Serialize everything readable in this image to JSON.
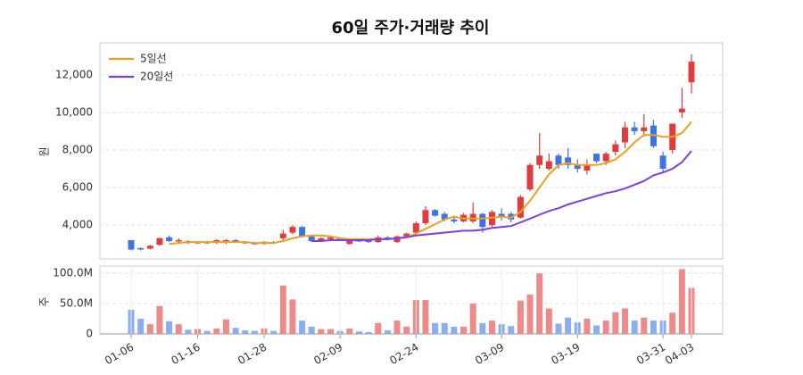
{
  "chart_data": [
    {
      "type": "candlestick",
      "title": "60일 주가·거래량 추이",
      "y_label": "원",
      "open": [
        3200,
        2780,
        2750,
        2950,
        3350,
        3150,
        3150,
        3050,
        3100,
        3050,
        3050,
        3200,
        3100,
        3050,
        3000,
        3100,
        3300,
        3600,
        3900,
        3400,
        3150,
        3250,
        3300,
        3000,
        3200,
        3200,
        3100,
        3350,
        3100,
        3400,
        3600,
        4100,
        4800,
        4600,
        4300,
        4200,
        4200,
        4600,
        4000,
        4600,
        4600,
        4400,
        5900,
        7200,
        7000,
        7700,
        7600,
        7200,
        6900,
        7800,
        7400,
        7900,
        8400,
        9200,
        9000,
        9300,
        7700,
        8000,
        10000,
        11600
      ],
      "high": [
        3200,
        2800,
        2950,
        3350,
        3450,
        3300,
        3200,
        3150,
        3150,
        3250,
        3250,
        3250,
        3150,
        3100,
        3150,
        3150,
        3750,
        4000,
        3950,
        3450,
        3350,
        3400,
        3350,
        3250,
        3250,
        3250,
        3450,
        3400,
        3450,
        3600,
        4200,
        5000,
        4850,
        4700,
        4500,
        4650,
        5200,
        4650,
        4800,
        4900,
        4700,
        5600,
        7300,
        8900,
        7800,
        7800,
        8100,
        7500,
        7500,
        7800,
        7900,
        8500,
        9500,
        9500,
        9900,
        9600,
        7900,
        9400,
        11300,
        13100
      ],
      "low": [
        2650,
        2650,
        2700,
        2900,
        3100,
        3050,
        3000,
        3000,
        3000,
        3000,
        3000,
        3050,
        3000,
        2950,
        2950,
        3000,
        3200,
        3500,
        3350,
        3100,
        3100,
        3200,
        3150,
        2950,
        3100,
        3050,
        3050,
        3200,
        3050,
        3350,
        3500,
        4000,
        4450,
        4200,
        4100,
        4150,
        4100,
        3600,
        3900,
        4250,
        4150,
        4350,
        5800,
        7000,
        6900,
        7000,
        7000,
        6800,
        6700,
        7300,
        7200,
        7700,
        8100,
        8800,
        8700,
        8100,
        6800,
        7800,
        9700,
        11000
      ],
      "close": [
        2700,
        2700,
        2900,
        3300,
        3150,
        3200,
        3050,
        3100,
        3050,
        3200,
        3200,
        3100,
        3050,
        3000,
        3100,
        3050,
        3550,
        3900,
        3400,
        3150,
        3300,
        3350,
        3200,
        3200,
        3150,
        3100,
        3350,
        3250,
        3400,
        3550,
        4100,
        4800,
        4500,
        4300,
        4200,
        4550,
        4600,
        3900,
        4700,
        4400,
        4300,
        5500,
        7200,
        7700,
        7400,
        7200,
        7200,
        7000,
        7200,
        7400,
        7800,
        8300,
        9200,
        9000,
        9200,
        8200,
        7000,
        9400,
        10200,
        12700
      ],
      "series": [
        {
          "name": "5일선",
          "color": "#f0a01e",
          "values": [
            null,
            null,
            null,
            null,
            3000,
            3050,
            3100,
            3100,
            3100,
            3100,
            3100,
            3100,
            3100,
            3050,
            3050,
            3050,
            3150,
            3300,
            3400,
            3450,
            3450,
            3400,
            3300,
            3250,
            3250,
            3250,
            3250,
            3250,
            3300,
            3350,
            3550,
            3800,
            4050,
            4300,
            4450,
            4350,
            4350,
            4350,
            4400,
            4450,
            4400,
            4700,
            5300,
            6000,
            6700,
            7200,
            7300,
            7200,
            7200,
            7200,
            7300,
            7500,
            7900,
            8400,
            8800,
            8800,
            8700,
            8700,
            8900,
            9500
          ]
        },
        {
          "name": "20일선",
          "color": "#7b3fe4",
          "values": [
            null,
            null,
            null,
            null,
            null,
            null,
            null,
            null,
            null,
            null,
            null,
            null,
            null,
            null,
            null,
            null,
            null,
            null,
            null,
            3150,
            3150,
            3200,
            3200,
            3200,
            3200,
            3200,
            3250,
            3250,
            3300,
            3350,
            3450,
            3500,
            3550,
            3600,
            3650,
            3700,
            3700,
            3750,
            3850,
            3900,
            3950,
            4150,
            4350,
            4550,
            4750,
            4900,
            5100,
            5250,
            5400,
            5550,
            5700,
            5800,
            5950,
            6150,
            6350,
            6650,
            6800,
            7000,
            7350,
            7950
          ]
        }
      ],
      "up_color": "#e03c3c",
      "down_color": "#3d72e8",
      "ylim": [
        2200,
        13700
      ],
      "yticks": [
        {
          "value": 4000,
          "label": "4,000"
        },
        {
          "value": 6000,
          "label": "6,000"
        },
        {
          "value": 8000,
          "label": "8,000"
        },
        {
          "value": 10000,
          "label": "10,000"
        },
        {
          "value": 12000,
          "label": "12,000"
        }
      ],
      "grid": true,
      "legend": "upper-left"
    },
    {
      "type": "bar",
      "y_label": "주",
      "categories": [
        "01-06",
        null,
        null,
        null,
        null,
        null,
        null,
        "01-16",
        null,
        null,
        null,
        null,
        null,
        null,
        "01-28",
        null,
        null,
        null,
        null,
        null,
        null,
        null,
        "02-09",
        null,
        null,
        null,
        null,
        null,
        null,
        null,
        "02-24",
        null,
        null,
        null,
        null,
        null,
        null,
        null,
        null,
        "03-09",
        null,
        null,
        null,
        null,
        null,
        null,
        null,
        "03-19",
        null,
        null,
        null,
        null,
        null,
        null,
        null,
        null,
        "03-31",
        null,
        null,
        "04-03"
      ],
      "values": [
        40000000,
        25000000,
        16000000,
        46000000,
        21000000,
        16000000,
        7000000,
        8000000,
        5000000,
        9000000,
        24000000,
        10000000,
        6000000,
        5000000,
        9000000,
        5000000,
        80000000,
        57000000,
        22000000,
        12000000,
        8000000,
        8000000,
        5000000,
        9000000,
        4000000,
        3000000,
        18000000,
        6000000,
        22000000,
        12000000,
        56000000,
        56000000,
        18000000,
        18000000,
        12000000,
        12000000,
        50000000,
        18000000,
        22000000,
        16000000,
        13000000,
        55000000,
        65000000,
        100000000,
        42000000,
        17000000,
        27000000,
        19000000,
        25000000,
        14000000,
        22000000,
        36000000,
        42000000,
        22000000,
        27000000,
        22000000,
        22000000,
        35000000,
        107000000,
        76000000
      ],
      "up_color": "#ee8a8a",
      "down_color": "#8aaef0",
      "ylim": [
        0,
        112000000
      ],
      "yticks": [
        0,
        {
          "value": 50000000,
          "label": "50.0M"
        },
        {
          "value": 100000000,
          "label": "100.0M"
        }
      ],
      "grid": true
    }
  ]
}
